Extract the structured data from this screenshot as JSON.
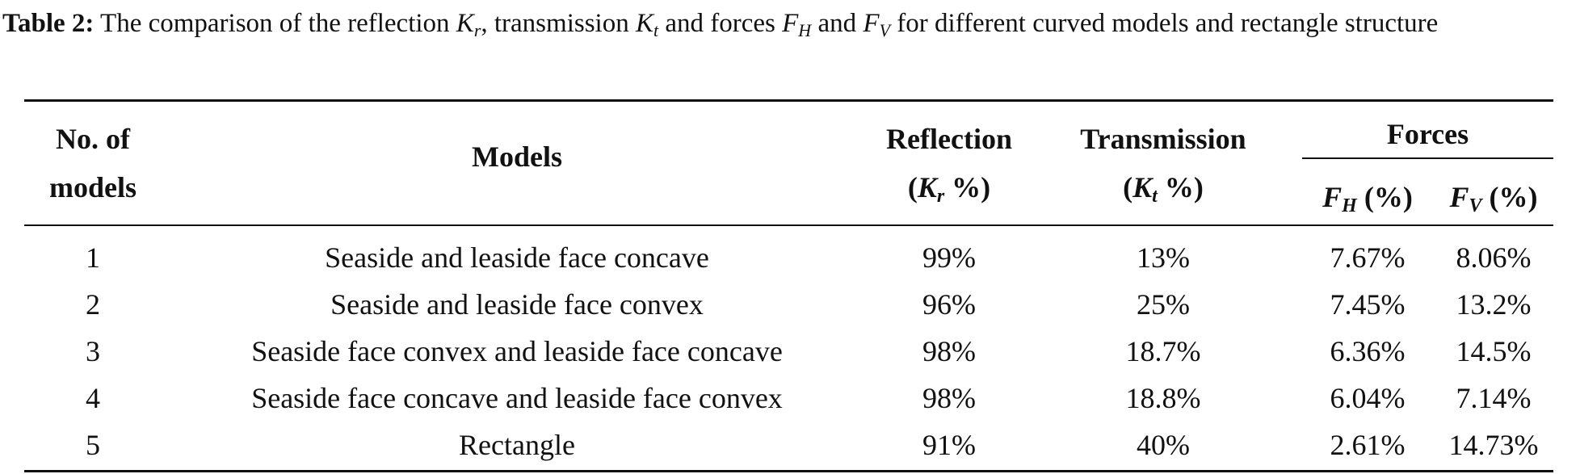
{
  "caption": {
    "label": "Table 2:",
    "text_before_kr": " The comparison of the reflection ",
    "kr_symbol": "K",
    "kr_sub": "r",
    "text_before_kt": ", transmission ",
    "kt_symbol": "K",
    "kt_sub": "t",
    "text_before_fh": " and forces ",
    "fh_symbol": "F",
    "fh_sub": "H",
    "text_and": " and ",
    "fv_symbol": "F",
    "fv_sub": "V",
    "text_end": " for different curved models and rectangle structure"
  },
  "table": {
    "headers": {
      "no_line1": "No. of",
      "no_line2": "models",
      "models": "Models",
      "reflection_line1": "Reflection",
      "reflection_open": "(",
      "reflection_symbol": "K",
      "reflection_sub": "r",
      "reflection_unit": " %)",
      "transmission_line1": "Transmission",
      "transmission_open": "(",
      "transmission_symbol": "K",
      "transmission_sub": "t",
      "transmission_unit": " %)",
      "forces": "Forces",
      "fh_symbol": "F",
      "fh_sub": "H",
      "fh_unit": " (%)",
      "fv_symbol": "F",
      "fv_sub": "V",
      "fv_unit": " (%)"
    },
    "rows": [
      {
        "no": "1",
        "model": "Seaside and leaside face concave",
        "reflection": "99%",
        "transmission": "13%",
        "fh": "7.67%",
        "fv": "8.06%"
      },
      {
        "no": "2",
        "model": "Seaside and leaside face convex",
        "reflection": "96%",
        "transmission": "25%",
        "fh": "7.45%",
        "fv": "13.2%"
      },
      {
        "no": "3",
        "model": "Seaside face convex and leaside face concave",
        "reflection": "98%",
        "transmission": "18.7%",
        "fh": "6.36%",
        "fv": "14.5%"
      },
      {
        "no": "4",
        "model": "Seaside face concave and leaside face convex",
        "reflection": "98%",
        "transmission": "18.8%",
        "fh": "6.04%",
        "fv": "7.14%"
      },
      {
        "no": "5",
        "model": "Rectangle",
        "reflection": "91%",
        "transmission": "40%",
        "fh": "2.61%",
        "fv": "14.73%"
      }
    ]
  }
}
